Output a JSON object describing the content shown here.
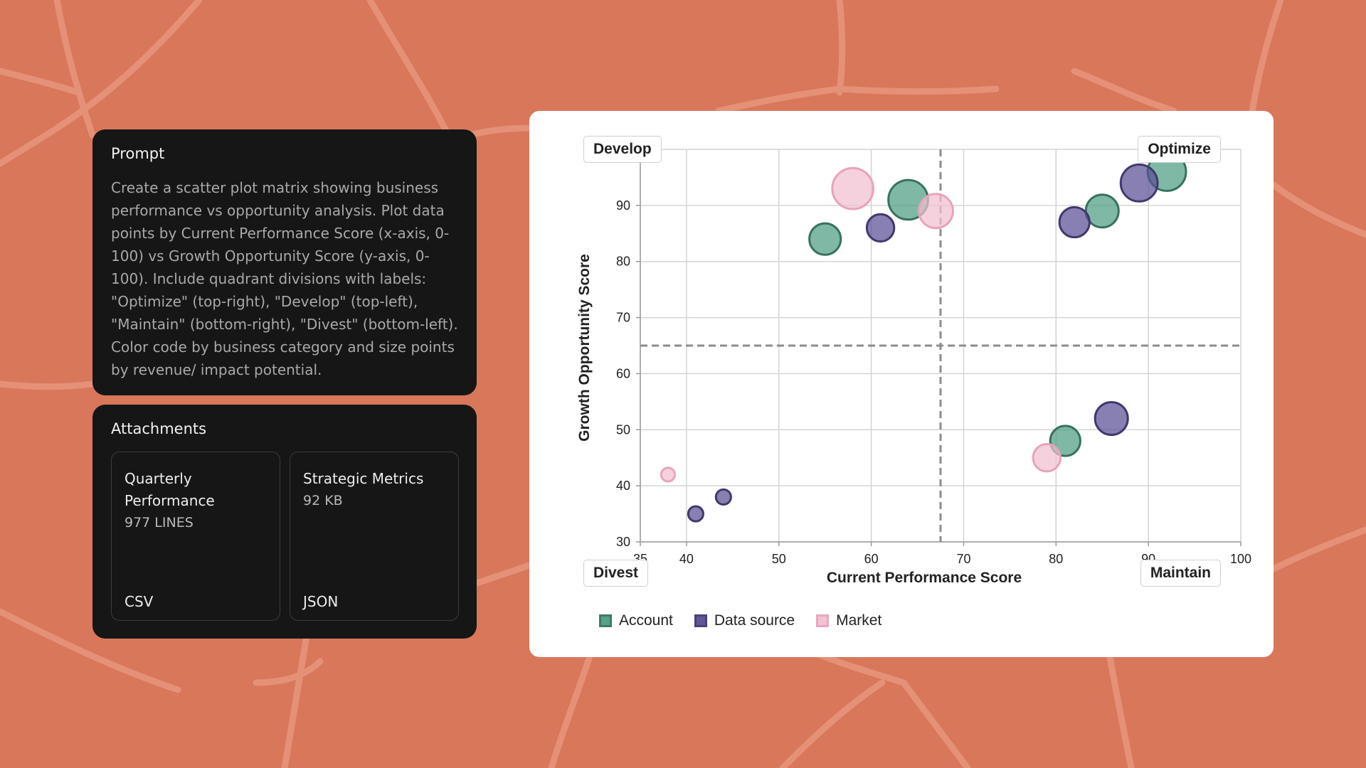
{
  "prompt": {
    "title": "Prompt",
    "text": "Create a scatter plot matrix showing business performance vs opportunity analysis. Plot data points by Current Performance Score (x-axis, 0-100) vs Growth Opportunity Score (y-axis, 0-100). Include quadrant divisions with labels: \"Optimize\" (top-right), \"Develop\" (top-left), \"Maintain\" (bottom-right), \"Divest\" (bottom-left). Color code by business category and size points by revenue/ impact potential."
  },
  "attachments": {
    "title": "Attachments",
    "items": [
      {
        "name": "Quarterly Performance",
        "meta": "977 LINES",
        "type": "CSV"
      },
      {
        "name": "Strategic Metrics",
        "meta": "92 KB",
        "type": "JSON"
      }
    ]
  },
  "chart_data": {
    "type": "scatter",
    "xlabel": "Current Performance Score",
    "ylabel": "Growth Opportunity Score",
    "xlim": [
      35,
      100
    ],
    "ylim": [
      30,
      100
    ],
    "xticks": [
      35,
      40,
      50,
      60,
      70,
      80,
      90,
      100
    ],
    "yticks": [
      30,
      40,
      50,
      60,
      70,
      80,
      90,
      100
    ],
    "grid": true,
    "quadrant_divider": {
      "x": 67.5,
      "y": 65
    },
    "quadrant_labels": {
      "top_left": "Develop",
      "top_right": "Optimize",
      "bottom_left": "Divest",
      "bottom_right": "Maintain"
    },
    "legend_position": "bottom-left",
    "size_encoding": "revenue/impact potential",
    "series": [
      {
        "name": "Account",
        "color": "#4E9E82",
        "points": [
          {
            "x": 55,
            "y": 84,
            "size": 2.3
          },
          {
            "x": 64,
            "y": 91,
            "size": 2.9
          },
          {
            "x": 81,
            "y": 48,
            "size": 2.2
          },
          {
            "x": 85,
            "y": 89,
            "size": 2.4
          },
          {
            "x": 92,
            "y": 96,
            "size": 2.8
          }
        ]
      },
      {
        "name": "Data source",
        "color": "#5A4E96",
        "points": [
          {
            "x": 41,
            "y": 35,
            "size": 1.1
          },
          {
            "x": 44,
            "y": 38,
            "size": 1.1
          },
          {
            "x": 61,
            "y": 86,
            "size": 2.0
          },
          {
            "x": 82,
            "y": 87,
            "size": 2.2
          },
          {
            "x": 86,
            "y": 52,
            "size": 2.4
          },
          {
            "x": 89,
            "y": 94,
            "size": 2.7
          }
        ]
      },
      {
        "name": "Market",
        "color": "#F1BFD0",
        "points": [
          {
            "x": 38,
            "y": 42,
            "size": 1.0
          },
          {
            "x": 58,
            "y": 93,
            "size": 3.0
          },
          {
            "x": 67,
            "y": 89,
            "size": 2.5
          },
          {
            "x": 79,
            "y": 45,
            "size": 2.0
          }
        ]
      }
    ]
  }
}
